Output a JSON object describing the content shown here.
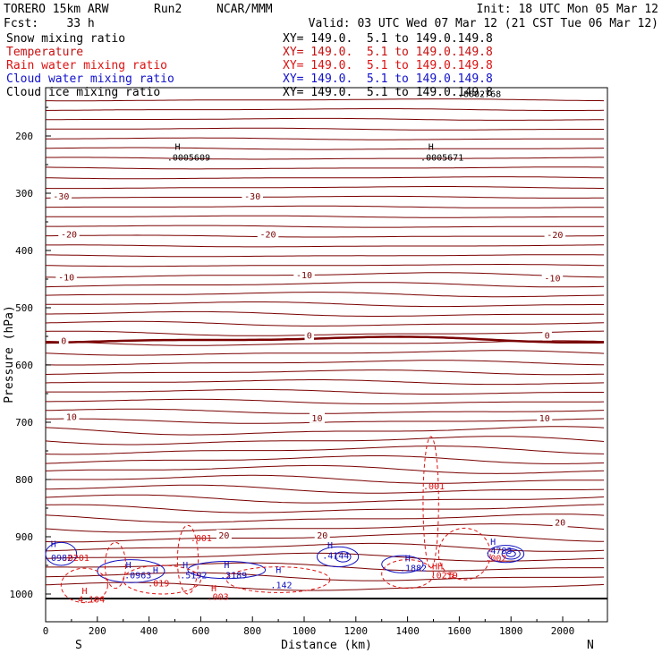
{
  "header": {
    "model": "TORERO  15km ARW",
    "run": "Run2",
    "center": "NCAR/MMM",
    "init": "Init: 18 UTC Mon 05 Mar 12",
    "fcst": "Fcst:    33 h",
    "valid": "Valid: 03 UTC Wed 07 Mar 12 (21 CST Tue 06 Mar 12)"
  },
  "fields": [
    {
      "name": "Snow mixing ratio",
      "color": "#000000",
      "xy": "XY= 149.0.  5.1 to 149.0.149.8"
    },
    {
      "name": "Temperature",
      "color": "#a00000",
      "xy": "XY= 149.0.  5.1 to 149.0.149.8"
    },
    {
      "name": "Rain water mixing ratio",
      "color": "#dd1111",
      "xy": "XY= 149.0.  5.1 to 149.0.149.8"
    },
    {
      "name": "Cloud water mixing ratio",
      "color": "#1111cc",
      "xy": "XY= 149.0.  5.1 to 149.0.149.8"
    },
    {
      "name": "Cloud ice mixing ratio",
      "color": "#000000",
      "xy": "XY= 149.0.  5.1 to 149.0.149.8"
    }
  ],
  "chart_data": {
    "type": "contour-cross-section",
    "xlabel": "Distance (km)",
    "ylabel": "Pressure (hPa)",
    "xlim": [
      0,
      2180
    ],
    "ylim": [
      1050,
      100
    ],
    "x_ticks": [
      0,
      200,
      400,
      600,
      800,
      1000,
      1200,
      1400,
      1600,
      1800,
      2000
    ],
    "y_ticks": [
      200,
      300,
      400,
      500,
      600,
      700,
      800,
      900,
      1000
    ],
    "end_labels": {
      "left": "S",
      "right": "N"
    },
    "colors": {
      "temperature": "#7a0000",
      "zero_isotherm": "#7a0000",
      "rain": "#e01010",
      "cloud_water": "#1010c0",
      "ice": "#000000",
      "ground": "#000000"
    },
    "isotherm_labels": [
      {
        "text": "-30",
        "x": 60,
        "p": 305
      },
      {
        "text": "-30",
        "x": 800,
        "p": 305
      },
      {
        "text": "-20",
        "x": 90,
        "p": 371
      },
      {
        "text": "-20",
        "x": 860,
        "p": 371
      },
      {
        "text": "-20",
        "x": 1970,
        "p": 372
      },
      {
        "text": "-10",
        "x": 80,
        "p": 446
      },
      {
        "text": "-10",
        "x": 1000,
        "p": 442
      },
      {
        "text": "-10",
        "x": 1960,
        "p": 448
      },
      {
        "text": "0",
        "x": 70,
        "p": 557
      },
      {
        "text": "0",
        "x": 1020,
        "p": 548
      },
      {
        "text": "0",
        "x": 1940,
        "p": 548
      },
      {
        "text": "10",
        "x": 100,
        "p": 690
      },
      {
        "text": "10",
        "x": 1050,
        "p": 692
      },
      {
        "text": "10",
        "x": 1930,
        "p": 692
      },
      {
        "text": "20",
        "x": 690,
        "p": 897
      },
      {
        "text": "20",
        "x": 1070,
        "p": 897
      },
      {
        "text": "20",
        "x": 1990,
        "p": 874
      }
    ],
    "ice_labels": [
      {
        "text": "H",
        "x": 500,
        "p": 224
      },
      {
        "text": ".0005609",
        "x": 470,
        "p": 243
      },
      {
        "text": "H",
        "x": 1480,
        "p": 224
      },
      {
        "text": ".0005671",
        "x": 1450,
        "p": 243
      },
      {
        "text": ".0002768",
        "x": 1595,
        "p": 132
      }
    ],
    "cloud_labels": [
      {
        "text": "H",
        "x": 20,
        "p": 918
      },
      {
        "text": ".0982",
        "x": 0,
        "p": 942
      },
      {
        "text": "H",
        "x": 310,
        "p": 955
      },
      {
        "text": ".0963",
        "x": 305,
        "p": 973
      },
      {
        "text": "H",
        "x": 415,
        "p": 964
      },
      {
        "text": "H",
        "x": 530,
        "p": 955
      },
      {
        "text": ".5192",
        "x": 520,
        "p": 973
      },
      {
        "text": "H",
        "x": 690,
        "p": 955
      },
      {
        "text": ".3189",
        "x": 675,
        "p": 973
      },
      {
        "text": "H",
        "x": 890,
        "p": 963
      },
      {
        "text": ".142",
        "x": 870,
        "p": 990
      },
      {
        "text": "H",
        "x": 1090,
        "p": 920
      },
      {
        "text": ".4144",
        "x": 1070,
        "p": 938
      },
      {
        "text": "H",
        "x": 1390,
        "p": 943
      },
      {
        "text": ".1882",
        "x": 1370,
        "p": 960
      },
      {
        "text": "H",
        "x": 1720,
        "p": 914
      },
      {
        "text": ".4783",
        "x": 1700,
        "p": 930
      }
    ],
    "rain_labels": [
      {
        "text": ".001",
        "x": 1460,
        "p": 817
      },
      {
        "text": ".001",
        "x": 560,
        "p": 908
      },
      {
        "text": ".0201",
        "x": 65,
        "p": 942
      },
      {
        "text": ".019",
        "x": 395,
        "p": 987
      },
      {
        "text": "H",
        "x": 140,
        "p": 1000
      },
      {
        "text": "4.104",
        "x": 125,
        "p": 1015
      },
      {
        "text": "H",
        "x": 640,
        "p": 995
      },
      {
        "text": ".003",
        "x": 625,
        "p": 1010
      },
      {
        "text": "HH",
        "x": 1495,
        "p": 957
      },
      {
        "text": ".0219",
        "x": 1490,
        "p": 973
      },
      {
        "text": "5",
        "x": 1560,
        "p": 973
      },
      {
        "text": ".002",
        "x": 1700,
        "p": 943
      }
    ]
  }
}
